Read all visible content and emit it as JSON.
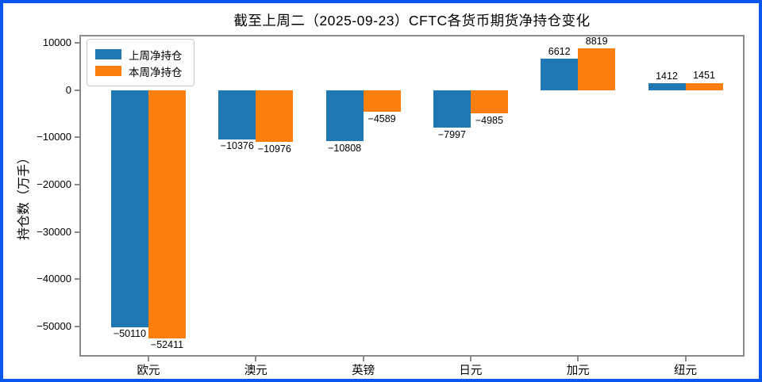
{
  "frame": {
    "border_color": "#0857ee",
    "spine_color": "#8a8a8a",
    "background": "#ffffff"
  },
  "chart_data": {
    "type": "bar",
    "title": "截至上周二（2025-09-23）CFTC各货币期货净持仓变化",
    "categories": [
      "欧元",
      "澳元",
      "英镑",
      "日元",
      "加元",
      "纽元"
    ],
    "series": [
      {
        "name": "上周净持仓",
        "color": "#1f77b4",
        "values": [
          -50110,
          -10376,
          -10808,
          -7997,
          6612,
          1412
        ]
      },
      {
        "name": "本周净持仓",
        "color": "#ff7f0e",
        "values": [
          -52411,
          -10976,
          -4589,
          -4985,
          8819,
          1451
        ]
      }
    ],
    "xlabel": "",
    "ylabel": "持仓数（万手）",
    "yticks": [
      10000,
      0,
      -10000,
      -20000,
      -30000,
      -40000,
      -50000
    ],
    "ylim": [
      -56333,
      11667
    ],
    "grid": false,
    "legend_position": "upper left",
    "value_labels": true
  }
}
